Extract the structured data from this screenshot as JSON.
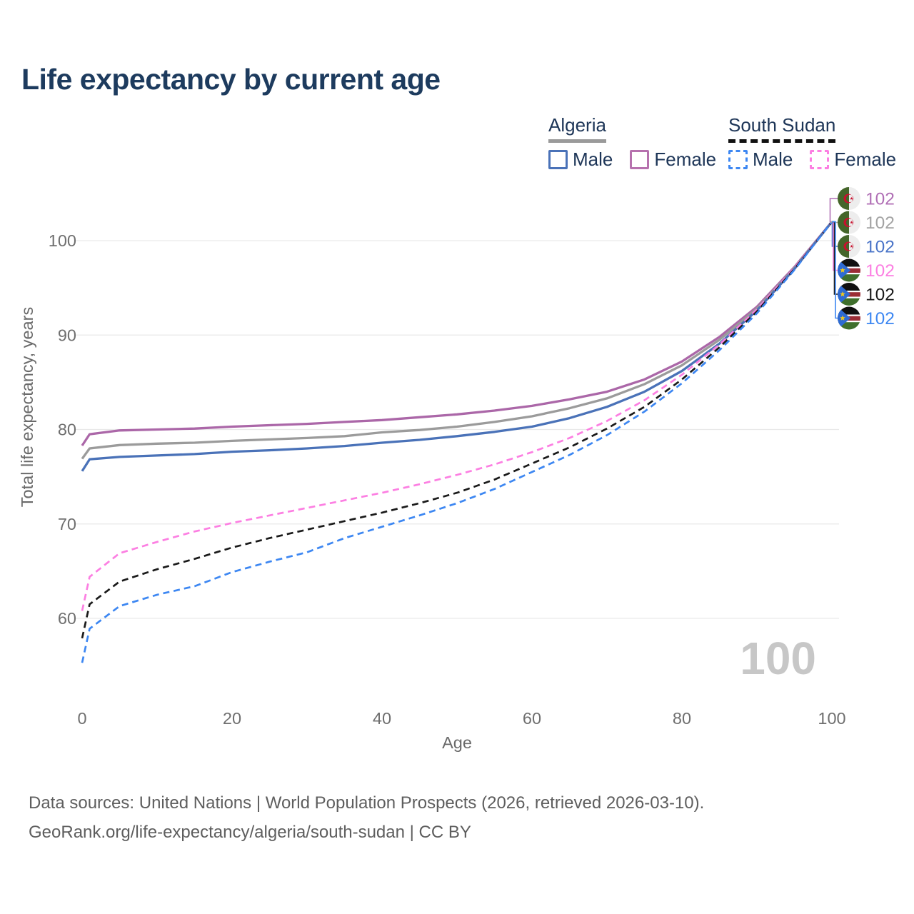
{
  "title": "Life expectancy by current age",
  "legend": {
    "groups": [
      {
        "country": "Algeria",
        "rule_style": "solid",
        "rule_color": "#9a9a9a",
        "items": [
          {
            "label": "Male",
            "color": "#4a72b8",
            "dashed": false
          },
          {
            "label": "Female",
            "color": "#b671ae",
            "dashed": false
          }
        ]
      },
      {
        "country": "South Sudan",
        "rule_style": "dashed",
        "rule_color": "#111111",
        "items": [
          {
            "label": "Male",
            "color": "#3d87f2",
            "dashed": true
          },
          {
            "label": "Female",
            "color": "#fc7fe2",
            "dashed": true
          }
        ]
      }
    ]
  },
  "watermark": "100",
  "footer": {
    "line1": "Data sources: United Nations | World Population Prospects (2026, retrieved 2026-03-10).",
    "line2": "GeoRank.org/life-expectancy/algeria/south-sudan | CC BY"
  },
  "chart_data": {
    "type": "line",
    "title": "Life expectancy by current age",
    "xlabel": "Age",
    "ylabel": "Total life expectancy, years",
    "xlim": [
      0,
      100
    ],
    "ylim": [
      54,
      104
    ],
    "grid": "horizontal-only",
    "legend_position": "top-right",
    "x_ticks": [
      0,
      20,
      40,
      60,
      80,
      100
    ],
    "y_ticks": [
      60,
      70,
      80,
      90,
      100
    ],
    "hovered_age": "100",
    "x": [
      0,
      1,
      5,
      10,
      15,
      20,
      25,
      30,
      35,
      40,
      45,
      50,
      55,
      60,
      65,
      70,
      75,
      80,
      85,
      90,
      95,
      100
    ],
    "series": [
      {
        "name": "Algeria — Female",
        "country": "Algeria",
        "sex": "Female",
        "style": "solid",
        "color": "#ab67a8",
        "values": [
          78.3,
          79.5,
          79.9,
          80.0,
          80.1,
          80.3,
          80.45,
          80.6,
          80.8,
          81.0,
          81.3,
          81.6,
          82.0,
          82.5,
          83.2,
          84.0,
          85.3,
          87.2,
          89.8,
          93.0,
          97.2,
          102
        ]
      },
      {
        "name": "Algeria",
        "country": "Algeria",
        "sex": "Both",
        "style": "solid",
        "color": "#9b9b9b",
        "values": [
          76.9,
          78.0,
          78.35,
          78.5,
          78.6,
          78.8,
          78.95,
          79.1,
          79.3,
          79.7,
          79.95,
          80.3,
          80.8,
          81.4,
          82.25,
          83.3,
          84.8,
          86.8,
          89.5,
          92.8,
          97.1,
          102
        ]
      },
      {
        "name": "Algeria — Male",
        "country": "Algeria",
        "sex": "Male",
        "style": "solid",
        "color": "#4a72b8",
        "values": [
          75.6,
          76.85,
          77.1,
          77.25,
          77.4,
          77.65,
          77.8,
          78.0,
          78.25,
          78.6,
          78.9,
          79.3,
          79.75,
          80.3,
          81.2,
          82.4,
          84.0,
          86.2,
          89.1,
          92.6,
          97.0,
          102
        ]
      },
      {
        "name": "South Sudan — Female",
        "country": "South Sudan",
        "sex": "Female",
        "style": "dashed",
        "color": "#fc7fe2",
        "values": [
          60.8,
          64.4,
          66.9,
          68.1,
          69.2,
          70.1,
          70.9,
          71.7,
          72.5,
          73.3,
          74.2,
          75.2,
          76.3,
          77.6,
          79.1,
          80.9,
          83.1,
          85.8,
          89.0,
          92.7,
          97.1,
          102
        ]
      },
      {
        "name": "South Sudan",
        "country": "South Sudan",
        "sex": "Both",
        "style": "dashed",
        "color": "#1a1a1a",
        "values": [
          57.9,
          61.5,
          63.9,
          65.2,
          66.3,
          67.5,
          68.5,
          69.4,
          70.3,
          71.2,
          72.2,
          73.3,
          74.7,
          76.4,
          78.1,
          80.1,
          82.4,
          85.3,
          88.7,
          92.5,
          97.0,
          102
        ]
      },
      {
        "name": "South Sudan — Male",
        "country": "South Sudan",
        "sex": "Male",
        "style": "dashed",
        "color": "#3d87f2",
        "values": [
          55.3,
          58.9,
          61.3,
          62.5,
          63.4,
          64.9,
          66.0,
          67.0,
          68.5,
          69.7,
          70.9,
          72.2,
          73.7,
          75.5,
          77.3,
          79.4,
          81.9,
          84.9,
          88.4,
          92.3,
          96.9,
          102
        ]
      }
    ],
    "end_labels": [
      {
        "flag": "algeria",
        "value": "102",
        "color": "#b06fb5"
      },
      {
        "flag": "algeria",
        "value": "102",
        "color": "#a3a3a3"
      },
      {
        "flag": "algeria",
        "value": "102",
        "color": "#4a74c8"
      },
      {
        "flag": "south-sudan",
        "value": "102",
        "color": "#fc7fe2"
      },
      {
        "flag": "south-sudan",
        "value": "102",
        "color": "#1a1a1a"
      },
      {
        "flag": "south-sudan",
        "value": "102",
        "color": "#3d87f2"
      }
    ]
  }
}
